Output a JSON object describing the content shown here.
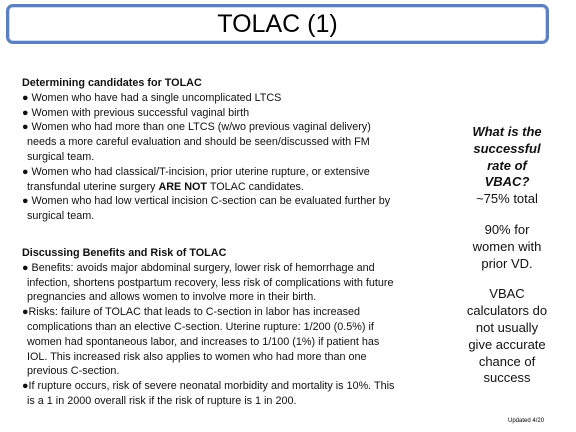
{
  "title": "TOLAC (1)",
  "section1": {
    "heading": "Determining candidates for TOLAC",
    "lines": [
      "● Women who have had a single uncomplicated LTCS",
      "● Women with previous successful vaginal birth",
      "● Women who had more than one LTCS (w/wo previous vaginal delivery)",
      "needs a more careful evaluation and should be seen/discussed with FM",
      "surgical team.",
      "● Women who had classical/T-incision, prior uterine rupture, or extensive",
      "transfundal uterine surgery ",
      "ARE NOT",
      " TOLAC candidates.",
      "● Women who had low vertical incision C-section can be evaluated further by",
      "surgical team."
    ]
  },
  "section2": {
    "heading": "Discussing Benefits and Risk of TOLAC",
    "lines": [
      "● Benefits: avoids major abdominal surgery, lower risk of hemorrhage and",
      "infection, shortens postpartum recovery, less risk of complications with future",
      "pregnancies and allows women to involve more in their birth.",
      "●Risks: failure of TOLAC that leads to C-section in labor has increased",
      "complications than an elective C-section. Uterine rupture: 1/200 (0.5%) if",
      "women had spontaneous labor, and increases to 1/100 (1%) if patient has",
      "IOL. This increased risk also applies to women who had more than one",
      "previous C-section.",
      "●If rupture occurs, risk of severe neonatal morbidity and mortality is 10%. This",
      "is a 1 in 2000 overall risk if the risk of rupture is 1 in 200."
    ]
  },
  "sidebar": {
    "question_lines": [
      "What is the",
      "successful",
      "rate of",
      "VBAC?"
    ],
    "answer_total": "~75% total",
    "prior_vd_lines": [
      "90% for",
      "women with",
      "prior VD."
    ],
    "calculator_lines": [
      "VBAC",
      "calculators do",
      "not usually",
      "give accurate",
      "chance of",
      "success"
    ]
  },
  "footer": "Updated 4/20"
}
